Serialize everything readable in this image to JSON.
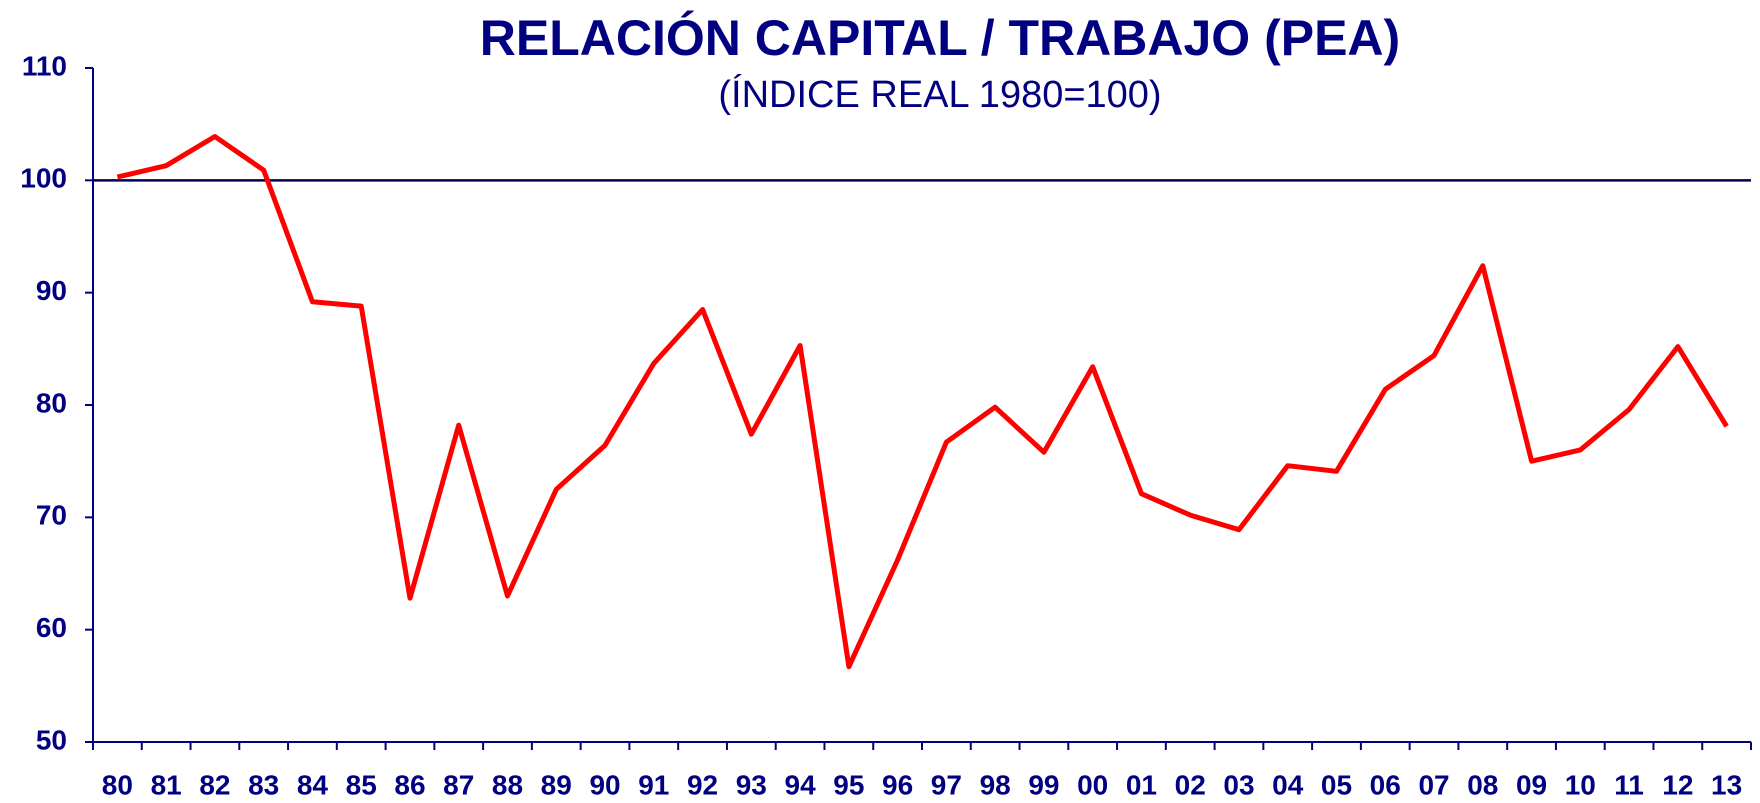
{
  "chart_data": {
    "type": "line",
    "title": "RELACIÓN CAPITAL / TRABAJO (PEA)",
    "subtitle": "(ÍNDICE REAL 1980=100)",
    "categories": [
      "80",
      "81",
      "82",
      "83",
      "84",
      "85",
      "86",
      "87",
      "88",
      "89",
      "90",
      "91",
      "92",
      "93",
      "94",
      "95",
      "96",
      "97",
      "98",
      "99",
      "00",
      "01",
      "02",
      "03",
      "04",
      "05",
      "06",
      "07",
      "08",
      "09",
      "10",
      "11",
      "12",
      "13"
    ],
    "values": [
      100.3,
      101.3,
      103.9,
      100.9,
      89.2,
      88.8,
      62.8,
      78.2,
      63.0,
      72.5,
      76.4,
      83.7,
      88.5,
      77.4,
      85.3,
      56.7,
      66.2,
      76.7,
      79.8,
      75.8,
      83.4,
      72.1,
      70.2,
      68.9,
      74.6,
      74.1,
      81.4,
      84.4,
      92.4,
      75.0,
      76.0,
      79.6,
      85.2,
      78.1
    ],
    "color": "#ff0000",
    "reference_line": 100,
    "ylim": [
      50,
      110
    ],
    "yticks": [
      50,
      60,
      70,
      80,
      90,
      100,
      110
    ],
    "grid": false
  }
}
